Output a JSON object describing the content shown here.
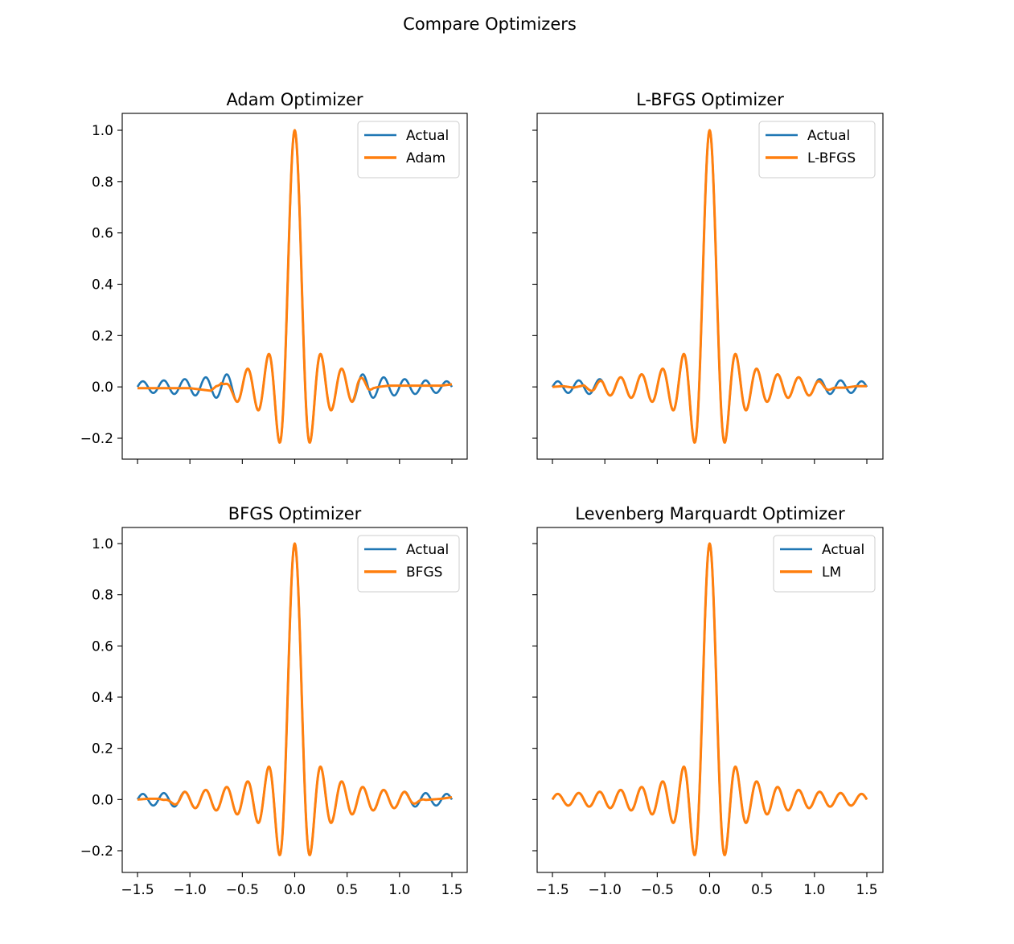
{
  "figure": {
    "suptitle": "Compare Optimizers"
  },
  "colors": {
    "actual": "#1f77b4",
    "fit": "#ff7f0e",
    "axes": "#000000",
    "legend_border": "#cccccc"
  },
  "chart_data": [
    {
      "type": "line",
      "title": "Adam Optimizer",
      "xlim": [
        -1.5,
        1.5
      ],
      "ylim": [
        -0.2,
        1.0
      ],
      "xticks": [
        "−1.5",
        "−1.0",
        "−0.5",
        "0.0",
        "0.5",
        "1.0",
        "1.5"
      ],
      "yticks": [
        "−0.2",
        "0.0",
        "0.2",
        "0.4",
        "0.6",
        "0.8",
        "1.0"
      ],
      "show_xticklabels": false,
      "show_yticklabels": true,
      "legend_position": "upper right",
      "grid": false,
      "series": [
        {
          "name": "Actual",
          "x": [
            -1.5,
            -1.4,
            -1.3,
            -1.2,
            -1.1,
            -1.0,
            -0.9,
            -0.8,
            -0.7,
            -0.6,
            -0.5,
            -0.4,
            -0.3,
            -0.2,
            -0.15,
            -0.1,
            -0.05,
            0.0,
            0.05,
            0.1,
            0.15,
            0.2,
            0.3,
            0.4,
            0.5,
            0.6,
            0.7,
            0.8,
            0.9,
            1.0,
            1.1,
            1.2,
            1.3,
            1.4,
            1.5
          ],
          "y": [
            0.0,
            0.02,
            -0.02,
            0.02,
            -0.03,
            0.03,
            -0.04,
            0.04,
            -0.04,
            0.05,
            -0.06,
            0.07,
            -0.09,
            0.13,
            -0.22,
            0.0,
            0.63,
            1.0,
            0.63,
            0.0,
            -0.22,
            0.13,
            -0.09,
            0.07,
            -0.06,
            0.05,
            -0.04,
            0.04,
            -0.04,
            0.03,
            -0.03,
            0.02,
            -0.02,
            0.02,
            0.0
          ]
        },
        {
          "name": "Adam",
          "x": [
            -1.5,
            -1.4,
            -1.3,
            -1.2,
            -1.1,
            -1.0,
            -0.9,
            -0.8,
            -0.7,
            -0.6,
            -0.5,
            -0.4,
            -0.3,
            -0.2,
            -0.15,
            -0.1,
            -0.05,
            0.0,
            0.05,
            0.1,
            0.15,
            0.2,
            0.3,
            0.4,
            0.5,
            0.6,
            0.7,
            0.8,
            0.9,
            1.0,
            1.1,
            1.2,
            1.3,
            1.4,
            1.5
          ],
          "y": [
            -0.005,
            -0.005,
            -0.005,
            -0.005,
            -0.005,
            -0.005,
            -0.01,
            -0.015,
            0.02,
            -0.07,
            -0.05,
            0.06,
            -0.1,
            0.12,
            -0.22,
            0.0,
            0.62,
            1.0,
            0.62,
            0.0,
            -0.22,
            0.12,
            -0.09,
            0.07,
            -0.05,
            0.04,
            -0.01,
            0.0,
            0.005,
            0.005,
            0.005,
            0.005,
            0.005,
            0.005,
            0.01
          ]
        }
      ]
    },
    {
      "type": "line",
      "title": "L-BFGS Optimizer",
      "xlim": [
        -1.5,
        1.5
      ],
      "ylim": [
        -0.2,
        1.0
      ],
      "xticks": [
        "−1.5",
        "−1.0",
        "−0.5",
        "0.0",
        "0.5",
        "1.0",
        "1.5"
      ],
      "yticks": [
        "−0.2",
        "0.0",
        "0.2",
        "0.4",
        "0.6",
        "0.8",
        "1.0"
      ],
      "show_xticklabels": false,
      "show_yticklabels": false,
      "legend_position": "upper right",
      "grid": false,
      "series": [
        {
          "name": "Actual",
          "x": [
            -1.5,
            -1.4,
            -1.3,
            -1.2,
            -1.1,
            -1.0,
            -0.9,
            -0.8,
            -0.7,
            -0.6,
            -0.5,
            -0.4,
            -0.3,
            -0.2,
            -0.15,
            -0.1,
            -0.05,
            0.0,
            0.05,
            0.1,
            0.15,
            0.2,
            0.3,
            0.4,
            0.5,
            0.6,
            0.7,
            0.8,
            0.9,
            1.0,
            1.1,
            1.2,
            1.3,
            1.4,
            1.5
          ],
          "y": [
            0.0,
            0.02,
            -0.02,
            0.02,
            -0.03,
            0.03,
            -0.04,
            0.04,
            -0.04,
            0.05,
            -0.06,
            0.07,
            -0.09,
            0.13,
            -0.22,
            0.0,
            0.63,
            1.0,
            0.63,
            0.0,
            -0.22,
            0.13,
            -0.09,
            0.07,
            -0.06,
            0.05,
            -0.04,
            0.04,
            -0.04,
            0.03,
            -0.03,
            0.02,
            -0.02,
            0.02,
            0.0
          ]
        },
        {
          "name": "L-BFGS",
          "x": [
            -1.5,
            -1.4,
            -1.3,
            -1.2,
            -1.1,
            -1.0,
            -0.9,
            -0.8,
            -0.7,
            -0.6,
            -0.5,
            -0.4,
            -0.3,
            -0.2,
            -0.15,
            -0.1,
            -0.05,
            0.0,
            0.05,
            0.1,
            0.15,
            0.2,
            0.3,
            0.4,
            0.5,
            0.6,
            0.7,
            0.8,
            0.9,
            1.0,
            1.1,
            1.2,
            1.3,
            1.4,
            1.5
          ],
          "y": [
            0.0,
            0.005,
            -0.005,
            0.01,
            -0.03,
            0.03,
            -0.04,
            0.04,
            -0.04,
            0.05,
            -0.06,
            0.07,
            -0.09,
            0.13,
            -0.22,
            0.0,
            0.63,
            1.0,
            0.63,
            0.0,
            -0.22,
            0.13,
            -0.09,
            0.07,
            -0.06,
            0.05,
            -0.04,
            -0.01,
            -0.01,
            -0.01,
            -0.01,
            -0.005,
            -0.005,
            0.005,
            0.005
          ]
        }
      ]
    },
    {
      "type": "line",
      "title": "BFGS Optimizer",
      "xlim": [
        -1.5,
        1.5
      ],
      "ylim": [
        -0.2,
        1.0
      ],
      "xticks": [
        "−1.5",
        "−1.0",
        "−0.5",
        "0.0",
        "0.5",
        "1.0",
        "1.5"
      ],
      "yticks": [
        "−0.2",
        "0.0",
        "0.2",
        "0.4",
        "0.6",
        "0.8",
        "1.0"
      ],
      "show_xticklabels": true,
      "show_yticklabels": true,
      "legend_position": "upper right",
      "grid": false,
      "series": [
        {
          "name": "Actual",
          "x": [
            -1.5,
            -1.4,
            -1.3,
            -1.2,
            -1.1,
            -1.0,
            -0.9,
            -0.8,
            -0.7,
            -0.6,
            -0.5,
            -0.4,
            -0.3,
            -0.2,
            -0.15,
            -0.1,
            -0.05,
            0.0,
            0.05,
            0.1,
            0.15,
            0.2,
            0.3,
            0.4,
            0.5,
            0.6,
            0.7,
            0.8,
            0.9,
            1.0,
            1.1,
            1.2,
            1.3,
            1.4,
            1.5
          ],
          "y": [
            0.0,
            0.02,
            -0.02,
            0.02,
            -0.03,
            0.03,
            -0.04,
            0.04,
            -0.04,
            0.05,
            -0.06,
            0.07,
            -0.09,
            0.13,
            -0.22,
            0.0,
            0.63,
            1.0,
            0.63,
            0.0,
            -0.22,
            0.13,
            -0.09,
            0.07,
            -0.06,
            0.05,
            -0.04,
            0.04,
            -0.04,
            0.03,
            -0.03,
            0.02,
            -0.02,
            0.02,
            0.0
          ]
        },
        {
          "name": "BFGS",
          "x": [
            -1.5,
            -1.4,
            -1.3,
            -1.2,
            -1.1,
            -1.0,
            -0.9,
            -0.8,
            -0.7,
            -0.6,
            -0.5,
            -0.4,
            -0.3,
            -0.2,
            -0.15,
            -0.1,
            -0.05,
            0.0,
            0.05,
            0.1,
            0.15,
            0.2,
            0.3,
            0.4,
            0.5,
            0.6,
            0.7,
            0.8,
            0.9,
            1.0,
            1.1,
            1.2,
            1.3,
            1.4,
            1.5
          ],
          "y": [
            0.0,
            0.005,
            0.005,
            -0.01,
            -0.02,
            0.03,
            -0.04,
            0.04,
            -0.04,
            0.05,
            -0.06,
            0.07,
            -0.09,
            0.13,
            -0.22,
            0.0,
            0.63,
            1.0,
            0.63,
            0.0,
            -0.22,
            0.13,
            -0.09,
            0.07,
            -0.06,
            0.05,
            -0.04,
            0.04,
            -0.03,
            0.01,
            -0.005,
            -0.005,
            0.0,
            0.005,
            0.015
          ]
        }
      ]
    },
    {
      "type": "line",
      "title": "Levenberg Marquardt Optimizer",
      "xlim": [
        -1.5,
        1.5
      ],
      "ylim": [
        -0.2,
        1.0
      ],
      "xticks": [
        "−1.5",
        "−1.0",
        "−0.5",
        "0.0",
        "0.5",
        "1.0",
        "1.5"
      ],
      "yticks": [
        "−0.2",
        "0.0",
        "0.2",
        "0.4",
        "0.6",
        "0.8",
        "1.0"
      ],
      "show_xticklabels": true,
      "show_yticklabels": false,
      "legend_position": "upper right",
      "grid": false,
      "series": [
        {
          "name": "Actual",
          "x": [
            -1.5,
            -1.4,
            -1.3,
            -1.2,
            -1.1,
            -1.0,
            -0.9,
            -0.8,
            -0.7,
            -0.6,
            -0.5,
            -0.4,
            -0.3,
            -0.2,
            -0.15,
            -0.1,
            -0.05,
            0.0,
            0.05,
            0.1,
            0.15,
            0.2,
            0.3,
            0.4,
            0.5,
            0.6,
            0.7,
            0.8,
            0.9,
            1.0,
            1.1,
            1.2,
            1.3,
            1.4,
            1.5
          ],
          "y": [
            0.0,
            0.02,
            -0.02,
            0.02,
            -0.03,
            0.03,
            -0.04,
            0.04,
            -0.04,
            0.05,
            -0.06,
            0.07,
            -0.09,
            0.13,
            -0.22,
            0.0,
            0.63,
            1.0,
            0.63,
            0.0,
            -0.22,
            0.13,
            -0.09,
            0.07,
            -0.06,
            0.05,
            -0.04,
            0.04,
            -0.04,
            0.03,
            -0.03,
            0.02,
            -0.02,
            0.02,
            0.0
          ]
        },
        {
          "name": "LM",
          "x": [
            -1.5,
            -1.4,
            -1.3,
            -1.2,
            -1.1,
            -1.0,
            -0.9,
            -0.8,
            -0.7,
            -0.6,
            -0.5,
            -0.4,
            -0.3,
            -0.2,
            -0.15,
            -0.1,
            -0.05,
            0.0,
            0.05,
            0.1,
            0.15,
            0.2,
            0.3,
            0.4,
            0.5,
            0.6,
            0.7,
            0.8,
            0.9,
            1.0,
            1.1,
            1.2,
            1.3,
            1.4,
            1.5
          ],
          "y": [
            0.0,
            0.02,
            -0.02,
            0.02,
            -0.03,
            0.03,
            -0.04,
            0.04,
            -0.04,
            0.05,
            -0.06,
            0.07,
            -0.09,
            0.13,
            -0.22,
            0.0,
            0.63,
            1.0,
            0.63,
            0.0,
            -0.22,
            0.13,
            -0.09,
            0.07,
            -0.06,
            0.05,
            -0.04,
            0.04,
            -0.04,
            0.03,
            -0.03,
            0.02,
            -0.02,
            0.02,
            0.0
          ]
        }
      ]
    }
  ]
}
